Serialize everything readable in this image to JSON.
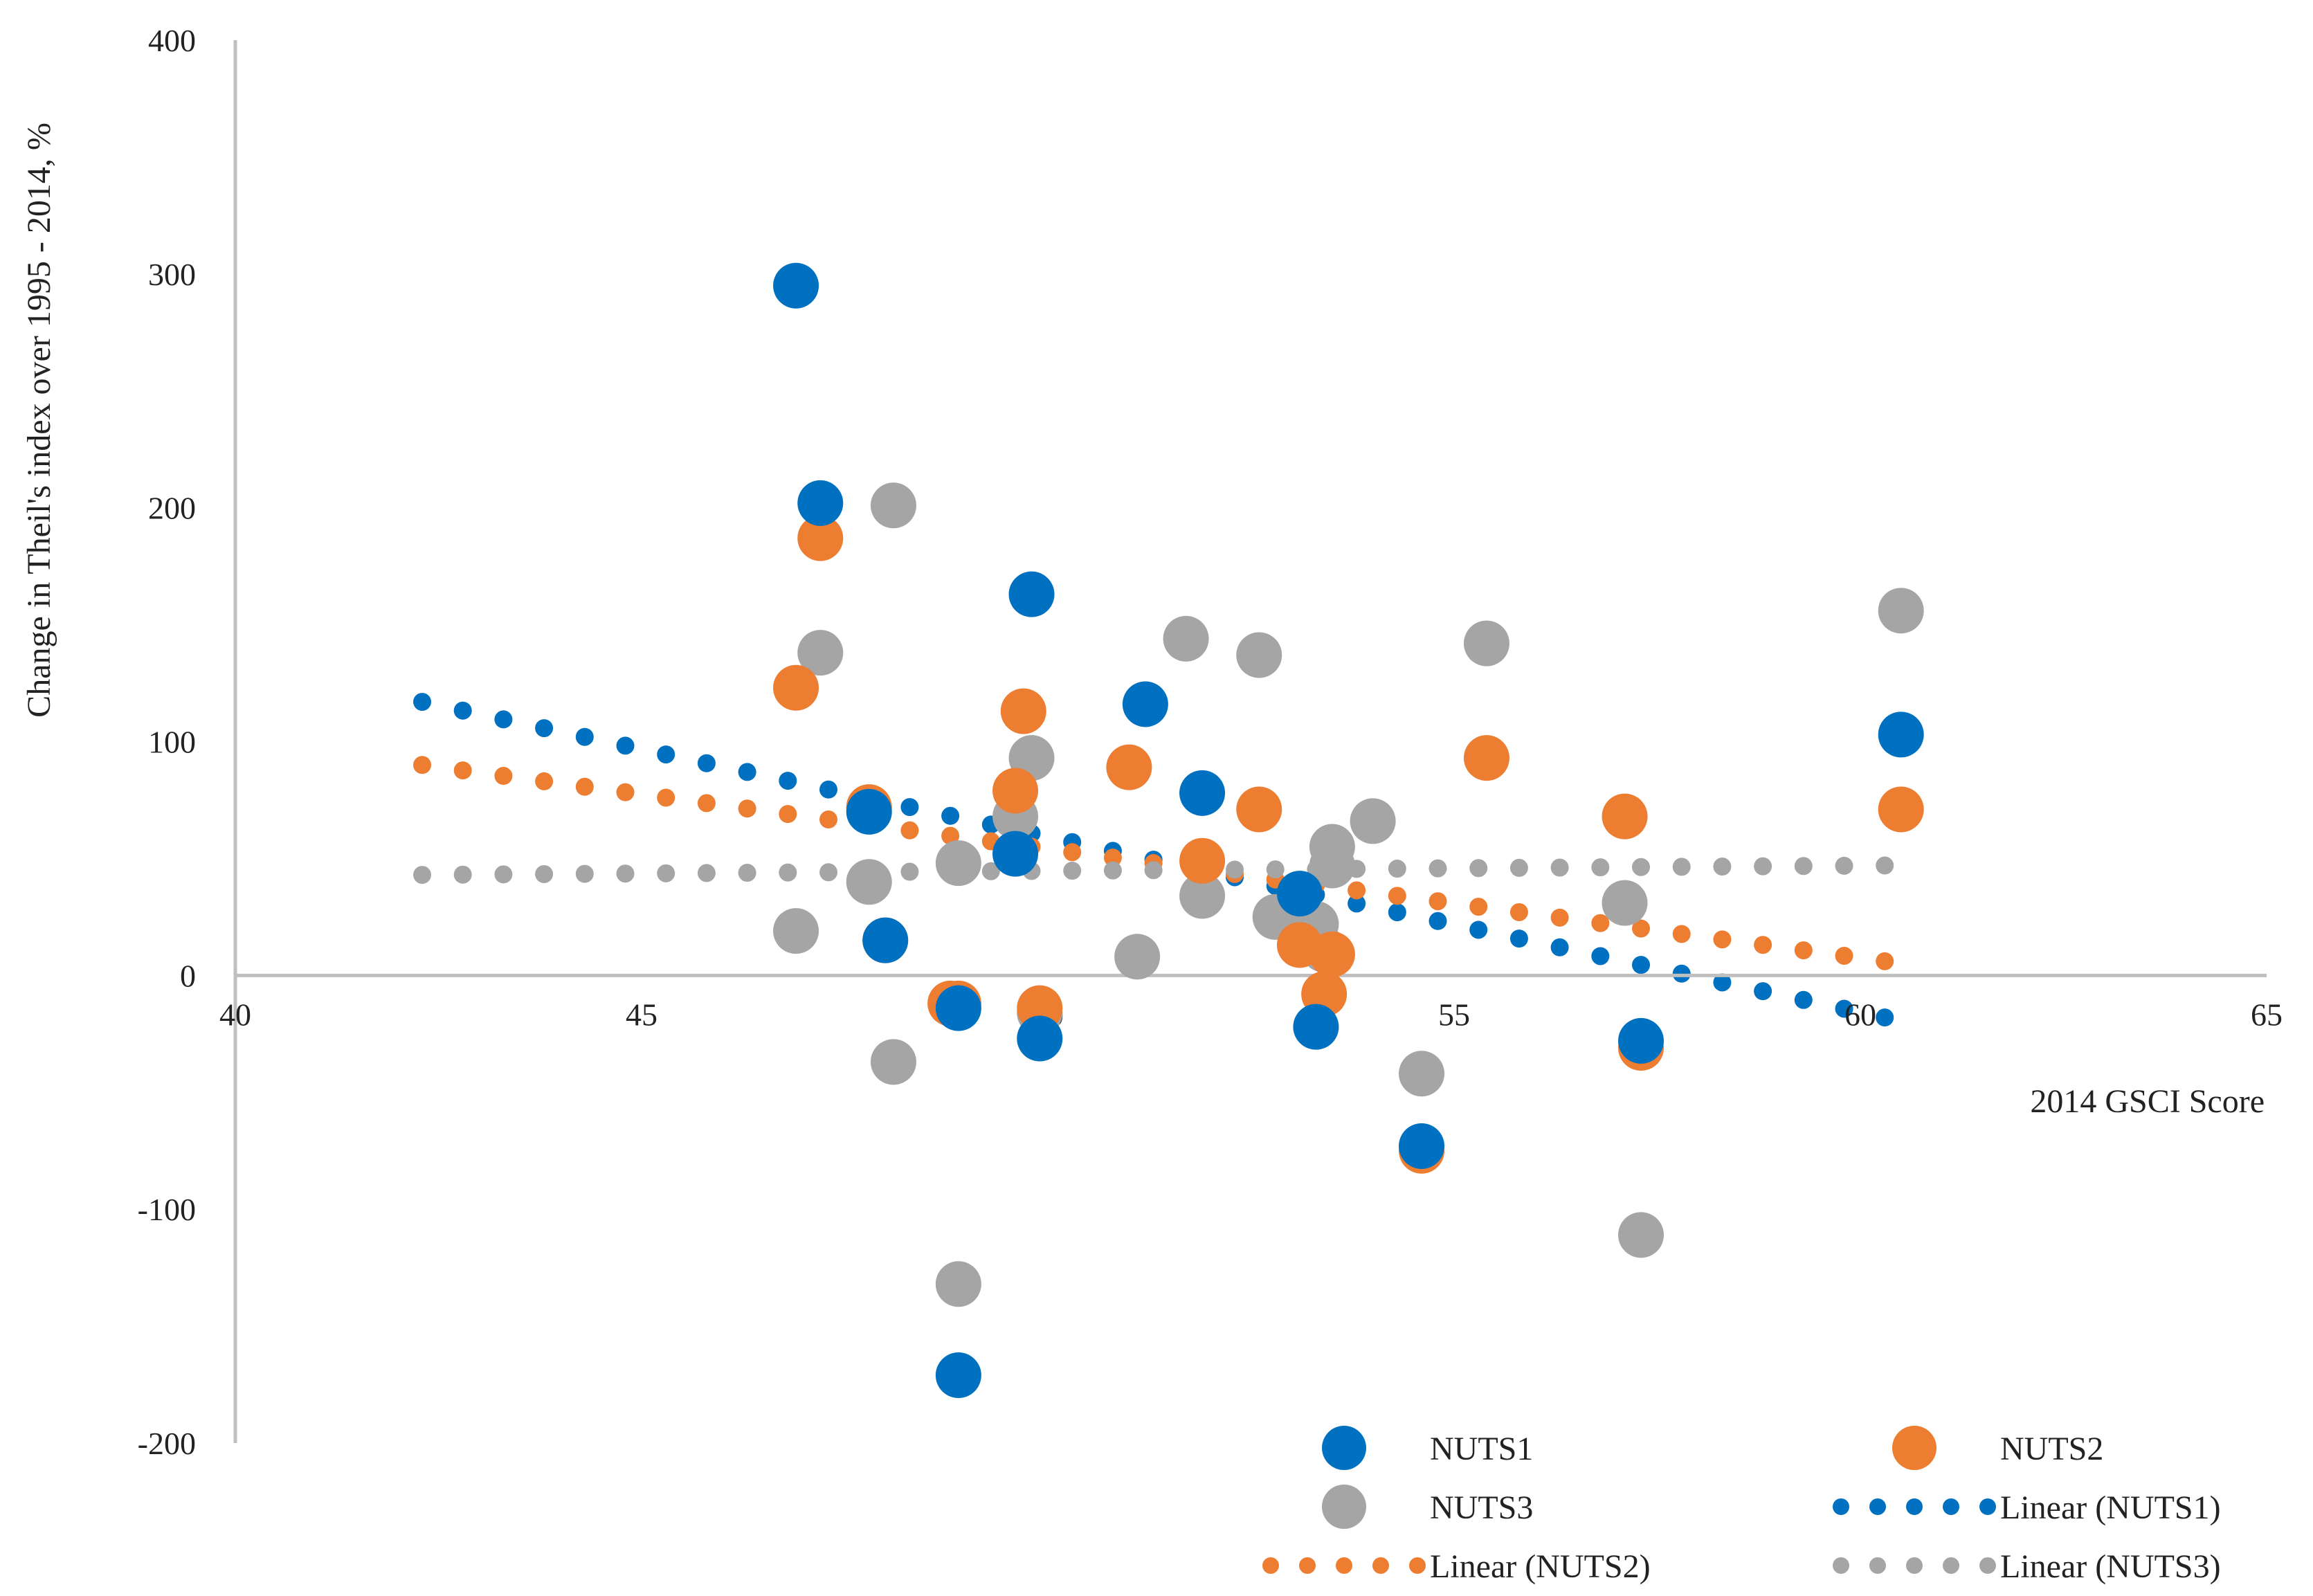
{
  "chart_data": {
    "type": "scatter",
    "title": "",
    "xlabel": "2014 GSCI Score",
    "ylabel": "Change in Theil's index over 1995 - 2014, %",
    "xlim": [
      40,
      65
    ],
    "ylim": [
      -200,
      400
    ],
    "xticks": [
      40,
      45,
      50,
      55,
      60,
      65
    ],
    "yticks": [
      -200,
      -100,
      0,
      100,
      200,
      300,
      400
    ],
    "grid": false,
    "legend_position": "bottom-right",
    "series": [
      {
        "name": "NUTS1",
        "color": "#0070C0",
        "points": [
          {
            "x": 46.9,
            "y": 295
          },
          {
            "x": 47.2,
            "y": 202
          },
          {
            "x": 47.8,
            "y": 70
          },
          {
            "x": 48.0,
            "y": 15
          },
          {
            "x": 48.9,
            "y": -14
          },
          {
            "x": 48.9,
            "y": -171
          },
          {
            "x": 49.6,
            "y": 52
          },
          {
            "x": 49.8,
            "y": 163
          },
          {
            "x": 49.9,
            "y": -27
          },
          {
            "x": 51.2,
            "y": 116
          },
          {
            "x": 51.9,
            "y": 78
          },
          {
            "x": 53.1,
            "y": 35
          },
          {
            "x": 53.3,
            "y": -22
          },
          {
            "x": 54.6,
            "y": -73
          },
          {
            "x": 57.3,
            "y": -28
          },
          {
            "x": 60.5,
            "y": 103
          }
        ]
      },
      {
        "name": "NUTS2",
        "color": "#ED7D31",
        "points": [
          {
            "x": 46.9,
            "y": 123
          },
          {
            "x": 47.2,
            "y": 187
          },
          {
            "x": 47.8,
            "y": 72
          },
          {
            "x": 48.0,
            "y": 15
          },
          {
            "x": 48.8,
            "y": -12
          },
          {
            "x": 48.9,
            "y": -12
          },
          {
            "x": 49.6,
            "y": 79
          },
          {
            "x": 49.7,
            "y": 113
          },
          {
            "x": 49.9,
            "y": -14
          },
          {
            "x": 51.0,
            "y": 89
          },
          {
            "x": 51.9,
            "y": 49
          },
          {
            "x": 52.6,
            "y": 71
          },
          {
            "x": 53.1,
            "y": 13
          },
          {
            "x": 53.4,
            "y": -8
          },
          {
            "x": 53.5,
            "y": 9
          },
          {
            "x": 54.6,
            "y": -75
          },
          {
            "x": 55.4,
            "y": 93
          },
          {
            "x": 57.1,
            "y": 68
          },
          {
            "x": 57.3,
            "y": -31
          },
          {
            "x": 60.5,
            "y": 71
          }
        ]
      },
      {
        "name": "NUTS3",
        "color": "#A5A5A5",
        "points": [
          {
            "x": 46.9,
            "y": 19
          },
          {
            "x": 47.2,
            "y": 138
          },
          {
            "x": 47.8,
            "y": 40
          },
          {
            "x": 48.1,
            "y": 201
          },
          {
            "x": 48.1,
            "y": -37
          },
          {
            "x": 48.9,
            "y": 48
          },
          {
            "x": 48.9,
            "y": -132
          },
          {
            "x": 49.6,
            "y": 68
          },
          {
            "x": 49.8,
            "y": 93
          },
          {
            "x": 49.9,
            "y": -16
          },
          {
            "x": 51.1,
            "y": 8
          },
          {
            "x": 51.7,
            "y": 144
          },
          {
            "x": 51.9,
            "y": 34
          },
          {
            "x": 52.6,
            "y": 137
          },
          {
            "x": 52.8,
            "y": 25
          },
          {
            "x": 53.3,
            "y": 22
          },
          {
            "x": 53.4,
            "y": 11
          },
          {
            "x": 53.5,
            "y": 55
          },
          {
            "x": 53.5,
            "y": 47
          },
          {
            "x": 54.0,
            "y": 66
          },
          {
            "x": 54.6,
            "y": -42
          },
          {
            "x": 55.4,
            "y": 142
          },
          {
            "x": 57.1,
            "y": 31
          },
          {
            "x": 57.3,
            "y": -111
          },
          {
            "x": 60.5,
            "y": 156
          }
        ]
      }
    ],
    "trendlines": [
      {
        "name": "Linear (NUTS1)",
        "color": "#0070C0",
        "x": [
          42.3,
          60.3
        ],
        "y": [
          117,
          -18
        ]
      },
      {
        "name": "Linear (NUTS2)",
        "color": "#ED7D31",
        "x": [
          42.3,
          60.1
        ],
        "y": [
          90,
          7
        ]
      },
      {
        "name": "Linear (NUTS3)",
        "color": "#A5A5A5",
        "x": [
          42.3,
          60.3
        ],
        "y": [
          43,
          47
        ]
      }
    ],
    "legend": [
      {
        "label": "NUTS1",
        "kind": "marker",
        "color": "#0070C0"
      },
      {
        "label": "NUTS2",
        "kind": "marker",
        "color": "#ED7D31"
      },
      {
        "label": "NUTS3",
        "kind": "marker",
        "color": "#A5A5A5"
      },
      {
        "label": "Linear (NUTS1)",
        "kind": "dots",
        "color": "#0070C0"
      },
      {
        "label": "Linear (NUTS2)",
        "kind": "dots",
        "color": "#ED7D31"
      },
      {
        "label": "Linear (NUTS3)",
        "kind": "dots",
        "color": "#A5A5A5"
      }
    ]
  }
}
